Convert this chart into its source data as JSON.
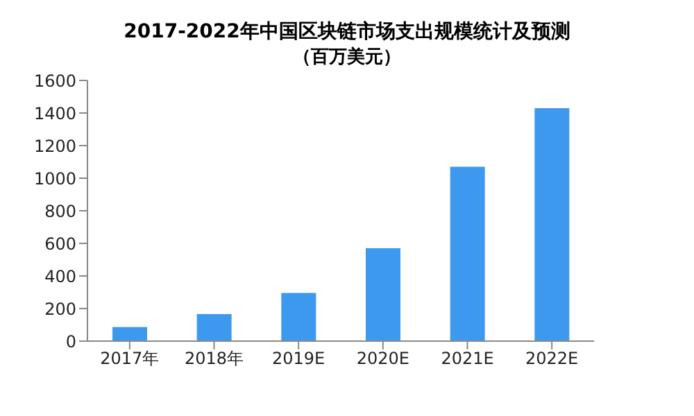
{
  "chart_data": {
    "type": "bar",
    "title": "2017-2022年中国区块链市场支出规模统计及预测",
    "subtitle": "（百万美元）",
    "categories": [
      "2017年",
      "2018年",
      "2019E",
      "2020E",
      "2021E",
      "2022E"
    ],
    "values": [
      86,
      166,
      296,
      570,
      1070,
      1430
    ],
    "color": "#3d99ee",
    "ylim": [
      0,
      1600
    ],
    "yticks": [
      0,
      200,
      400,
      600,
      800,
      1000,
      1200,
      1400,
      1600
    ],
    "grid": false
  }
}
